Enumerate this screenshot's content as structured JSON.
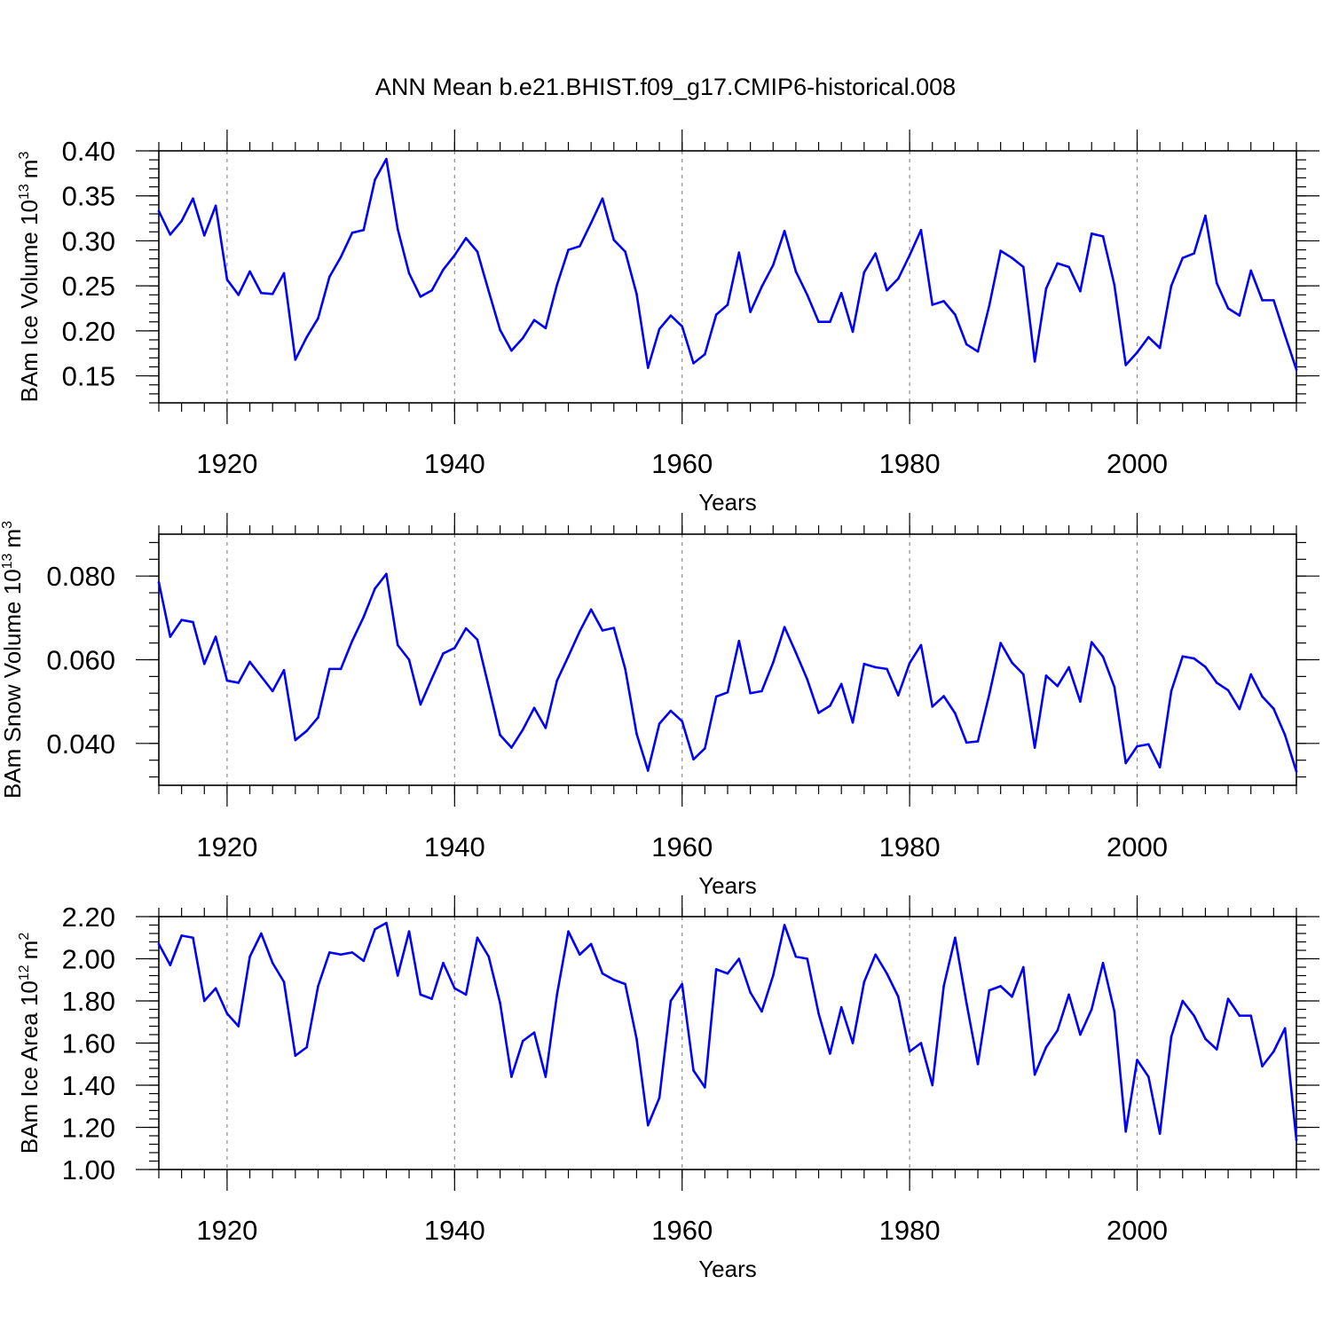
{
  "title": "ANN Mean b.e21.BHIST.f09_g17.CMIP6-historical.008",
  "line_color": "#0000ff",
  "chart_data": [
    {
      "type": "line",
      "ylabel_text": "BAm Ice Volume 10",
      "ylabel_exp": "13",
      "ylabel_unit": "m",
      "ylabel_unit_exp": "3",
      "xlabel": "Years",
      "xlim": [
        1914,
        2014
      ],
      "ylim": [
        0.12,
        0.4
      ],
      "xticks": [
        "1920",
        "1940",
        "1960",
        "1980",
        "2000"
      ],
      "yticks": [
        "0.15",
        "0.20",
        "0.25",
        "0.30",
        "0.35",
        "0.40"
      ],
      "grid": "vertical dashed at major x ticks",
      "x_start": 1914,
      "values": [
        0.333,
        0.307,
        0.322,
        0.347,
        0.306,
        0.339,
        0.257,
        0.24,
        0.266,
        0.242,
        0.241,
        0.264,
        0.168,
        0.193,
        0.214,
        0.26,
        0.282,
        0.309,
        0.312,
        0.368,
        0.391,
        0.313,
        0.264,
        0.238,
        0.245,
        0.268,
        0.284,
        0.303,
        0.288,
        0.244,
        0.201,
        0.178,
        0.192,
        0.212,
        0.203,
        0.251,
        0.29,
        0.294,
        0.32,
        0.347,
        0.301,
        0.288,
        0.241,
        0.159,
        0.202,
        0.217,
        0.205,
        0.164,
        0.174,
        0.218,
        0.229,
        0.287,
        0.221,
        0.249,
        0.273,
        0.311,
        0.266,
        0.24,
        0.21,
        0.21,
        0.242,
        0.199,
        0.265,
        0.286,
        0.245,
        0.258,
        0.284,
        0.312,
        0.229,
        0.233,
        0.218,
        0.185,
        0.177,
        0.228,
        0.289,
        0.281,
        0.271,
        0.166,
        0.247,
        0.275,
        0.271,
        0.244,
        0.308,
        0.305,
        0.251,
        0.162,
        0.176,
        0.193,
        0.181,
        0.25,
        0.281,
        0.286,
        0.328,
        0.253,
        0.225,
        0.217,
        0.267,
        0.234,
        0.234,
        0.195,
        0.157
      ]
    },
    {
      "type": "line",
      "ylabel_text": "BAm Snow Volume 10",
      "ylabel_exp": "13",
      "ylabel_unit": "m",
      "ylabel_unit_exp": "3",
      "xlabel": "Years",
      "xlim": [
        1914,
        2014
      ],
      "ylim": [
        0.03,
        0.09
      ],
      "xticks": [
        "1920",
        "1940",
        "1960",
        "1980",
        "2000"
      ],
      "yticks": [
        "0.040",
        "0.060",
        "0.080"
      ],
      "grid": "vertical dashed at major x ticks",
      "x_start": 1914,
      "values": [
        0.0785,
        0.0655,
        0.0695,
        0.069,
        0.059,
        0.0655,
        0.055,
        0.0545,
        0.0595,
        0.056,
        0.0525,
        0.0575,
        0.0408,
        0.043,
        0.0462,
        0.0578,
        0.0578,
        0.0645,
        0.0702,
        0.077,
        0.0805,
        0.0635,
        0.06,
        0.0493,
        0.0555,
        0.0615,
        0.0628,
        0.0675,
        0.0648,
        0.0535,
        0.042,
        0.039,
        0.0433,
        0.0485,
        0.0437,
        0.055,
        0.0608,
        0.0668,
        0.072,
        0.067,
        0.0676,
        0.0578,
        0.0423,
        0.0335,
        0.0447,
        0.0478,
        0.0453,
        0.0362,
        0.0388,
        0.0512,
        0.0522,
        0.0645,
        0.052,
        0.0525,
        0.0593,
        0.0678,
        0.0617,
        0.0553,
        0.0473,
        0.049,
        0.0542,
        0.045,
        0.059,
        0.0582,
        0.0578,
        0.0515,
        0.0592,
        0.0635,
        0.0488,
        0.0513,
        0.0472,
        0.0402,
        0.0405,
        0.0517,
        0.064,
        0.0593,
        0.0565,
        0.039,
        0.0562,
        0.0537,
        0.0582,
        0.05,
        0.0642,
        0.0607,
        0.0535,
        0.0353,
        0.0393,
        0.0398,
        0.0343,
        0.0525,
        0.0608,
        0.0603,
        0.0583,
        0.0545,
        0.0527,
        0.0482,
        0.0565,
        0.0512,
        0.0483,
        0.042,
        0.0333
      ]
    },
    {
      "type": "line",
      "ylabel_text": "BAm Ice Area 10",
      "ylabel_exp": "12",
      "ylabel_unit": "m",
      "ylabel_unit_exp": "2",
      "xlabel": "Years",
      "xlim": [
        1914,
        2014
      ],
      "ylim": [
        1.0,
        2.2
      ],
      "xticks": [
        "1920",
        "1940",
        "1960",
        "1980",
        "2000"
      ],
      "yticks": [
        "1.00",
        "1.20",
        "1.40",
        "1.60",
        "1.80",
        "2.00",
        "2.20"
      ],
      "grid": "vertical dashed at major x ticks",
      "x_start": 1914,
      "values": [
        2.07,
        1.97,
        2.11,
        2.1,
        1.8,
        1.86,
        1.74,
        1.68,
        2.01,
        2.12,
        1.98,
        1.89,
        1.54,
        1.58,
        1.87,
        2.03,
        2.02,
        2.03,
        1.99,
        2.14,
        2.17,
        1.92,
        2.13,
        1.83,
        1.81,
        1.98,
        1.86,
        1.83,
        2.1,
        2.01,
        1.79,
        1.44,
        1.61,
        1.65,
        1.44,
        1.83,
        2.13,
        2.02,
        2.07,
        1.93,
        1.9,
        1.88,
        1.62,
        1.21,
        1.34,
        1.8,
        1.88,
        1.47,
        1.39,
        1.95,
        1.93,
        2.0,
        1.84,
        1.75,
        1.92,
        2.16,
        2.01,
        2.0,
        1.74,
        1.55,
        1.77,
        1.6,
        1.89,
        2.02,
        1.93,
        1.82,
        1.56,
        1.6,
        1.4,
        1.87,
        2.1,
        1.79,
        1.5,
        1.85,
        1.87,
        1.82,
        1.96,
        1.45,
        1.58,
        1.66,
        1.83,
        1.64,
        1.76,
        1.98,
        1.75,
        1.18,
        1.52,
        1.44,
        1.17,
        1.63,
        1.8,
        1.73,
        1.62,
        1.57,
        1.81,
        1.73,
        1.73,
        1.49,
        1.56,
        1.67,
        1.14
      ]
    }
  ]
}
